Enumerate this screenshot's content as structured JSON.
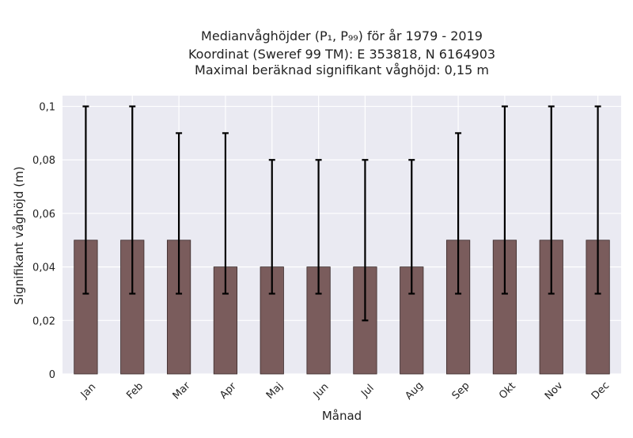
{
  "chart_data": {
    "type": "bar",
    "title_lines": [
      "Medianvåghöjder (P₁, P₉₉) för år 1979 - 2019",
      "Koordinat (Sweref 99 TM): E 353818, N 6164903",
      "Maximal beräknad signifikant våghöjd: 0,15 m"
    ],
    "xlabel": "Månad",
    "ylabel": "Signifikant våghöjd (m)",
    "categories": [
      "Jan",
      "Feb",
      "Mar",
      "Apr",
      "Maj",
      "Jun",
      "Jul",
      "Aug",
      "Sep",
      "Okt",
      "Nov",
      "Dec"
    ],
    "values": [
      0.05,
      0.05,
      0.05,
      0.04,
      0.04,
      0.04,
      0.04,
      0.04,
      0.05,
      0.05,
      0.05,
      0.05
    ],
    "error_low": [
      0.03,
      0.03,
      0.03,
      0.03,
      0.03,
      0.03,
      0.02,
      0.03,
      0.03,
      0.03,
      0.03,
      0.03
    ],
    "error_high": [
      0.1,
      0.1,
      0.09,
      0.09,
      0.08,
      0.08,
      0.08,
      0.08,
      0.09,
      0.1,
      0.1,
      0.1
    ],
    "ylim": [
      0,
      0.104
    ],
    "yticks": [
      0,
      0.02,
      0.04,
      0.06,
      0.08,
      0.1
    ],
    "ytick_labels": [
      "0",
      "0,02",
      "0,04",
      "0,06",
      "0,08",
      "0,1"
    ],
    "grid": true,
    "colors": {
      "bar": "#7a5c5c",
      "bar_edge": "#3a2a2a",
      "error": "#000000",
      "plot_bg": "#eaeaf2",
      "grid": "#ffffff"
    }
  }
}
